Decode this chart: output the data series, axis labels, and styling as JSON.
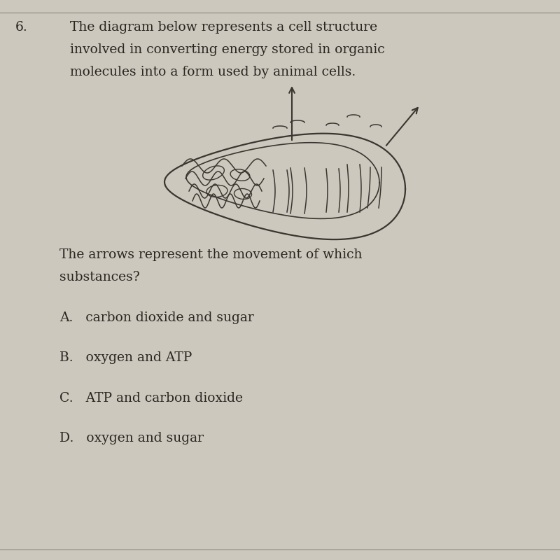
{
  "bg_color": "#cdc8be",
  "panel_color": "#d8d3c8",
  "text_color": "#2a2520",
  "diagram_color": "#3a3530",
  "question_number": "6.",
  "q_line1": "The diagram below represents a cell structure",
  "q_line2": "involved in converting energy stored in organic",
  "q_line3": "molecules into a form used by animal cells.",
  "sub_q_line1": "The arrows represent the movement of which",
  "sub_q_line2": "substances?",
  "choice_A": "A.   carbon dioxide and sugar",
  "choice_B": "B.   oxygen and ATP",
  "choice_C": "C.   ATP and carbon dioxide",
  "choice_D": "D.   oxygen and sugar",
  "font_size": 13.5,
  "choice_font_size": 13.5
}
